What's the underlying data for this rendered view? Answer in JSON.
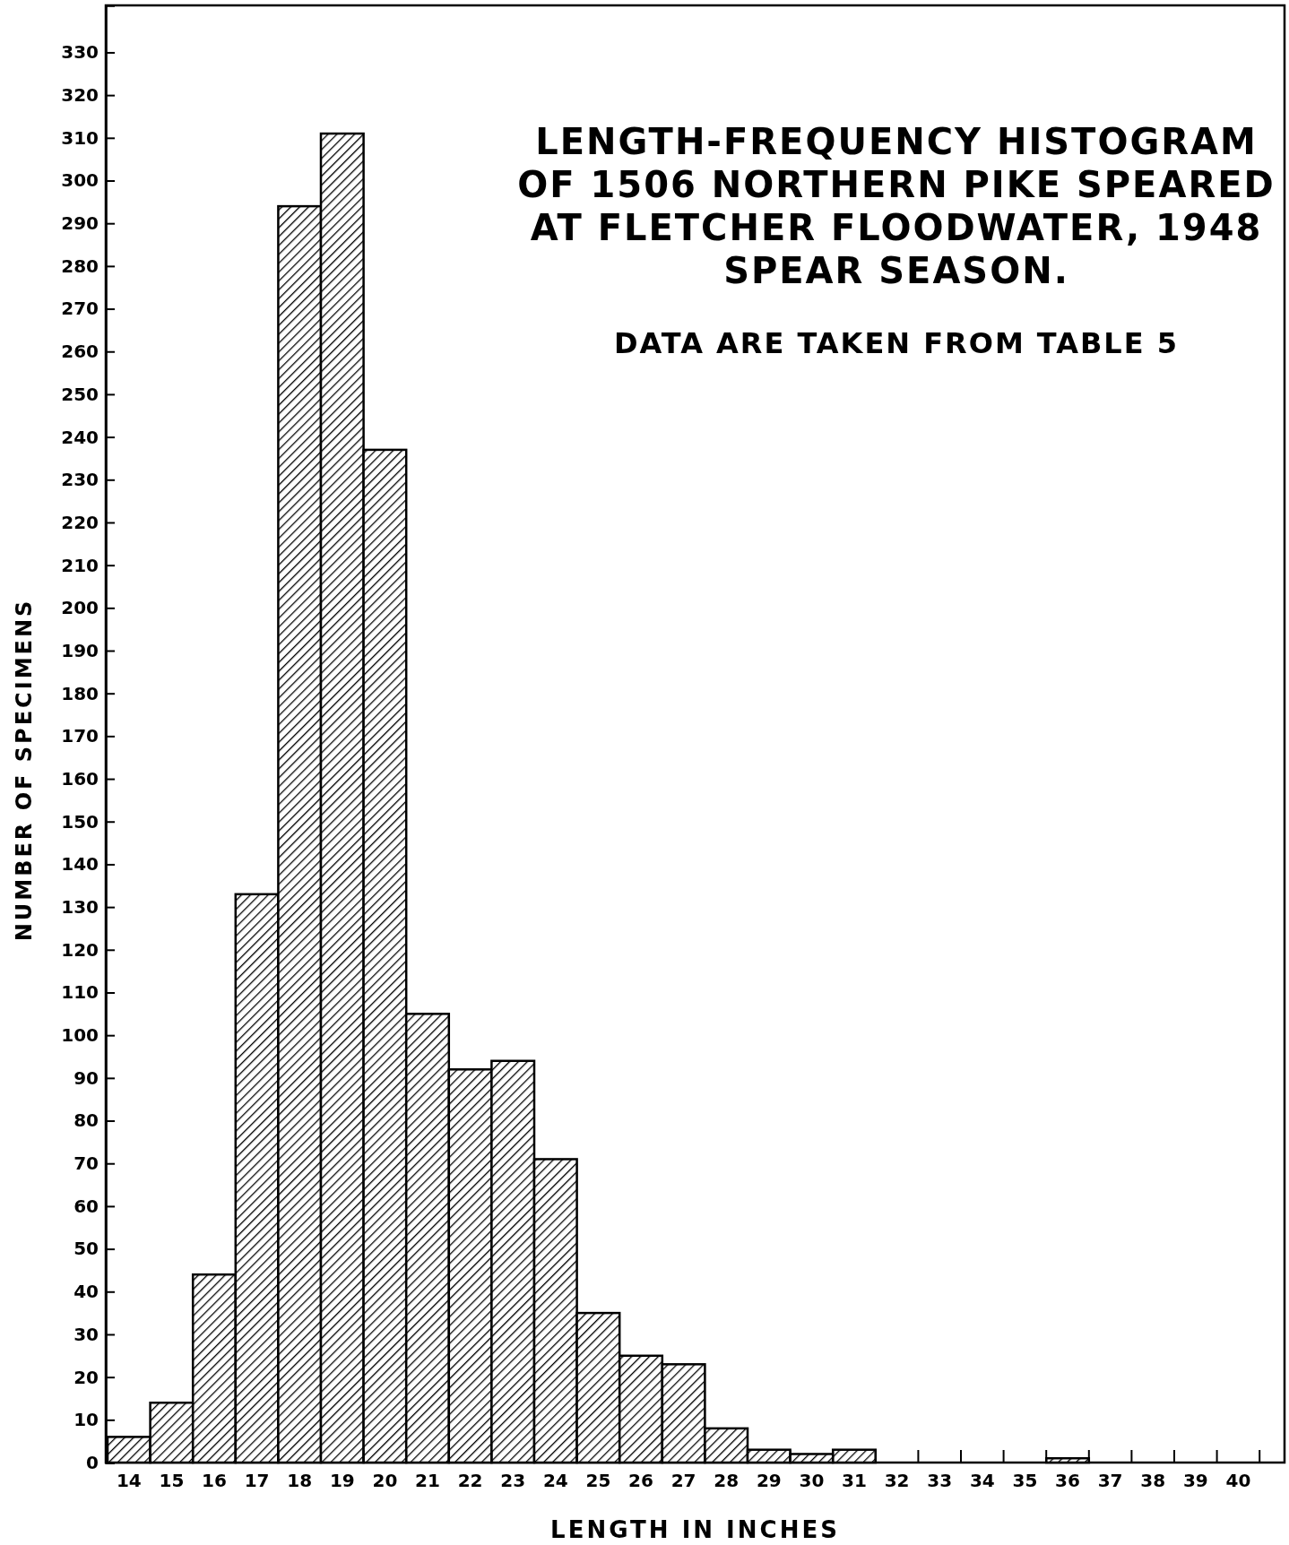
{
  "chart_data": {
    "type": "bar",
    "title": "LENGTH-FREQUENCY HISTOGRAM OF 1506 NORTHERN PIKE SPEARED AT FLETCHER FLOODWATER, 1948 SPEAR SEASON.",
    "subtitle": "DATA ARE TAKEN FROM TABLE 5",
    "xlabel": "LENGTH IN INCHES",
    "ylabel": "NUMBER OF SPECIMENS",
    "categories": [
      "14",
      "15",
      "16",
      "17",
      "18",
      "19",
      "20",
      "21",
      "22",
      "23",
      "24",
      "25",
      "26",
      "27",
      "28",
      "29",
      "30",
      "31",
      "32",
      "33",
      "34",
      "35",
      "36",
      "37",
      "38",
      "39",
      "40"
    ],
    "values": [
      6,
      14,
      44,
      133,
      294,
      311,
      237,
      105,
      92,
      94,
      71,
      35,
      25,
      23,
      8,
      3,
      2,
      3,
      0,
      0,
      0,
      0,
      1,
      0,
      0,
      0,
      0
    ],
    "color": "#000000",
    "ylim": [
      0,
      341
    ],
    "yticks": [
      0,
      10,
      20,
      30,
      40,
      50,
      60,
      70,
      80,
      90,
      100,
      110,
      120,
      130,
      140,
      150,
      160,
      170,
      180,
      190,
      200,
      210,
      220,
      230,
      240,
      250,
      260,
      270,
      280,
      290,
      300,
      310,
      320,
      330
    ],
    "grid": false
  }
}
